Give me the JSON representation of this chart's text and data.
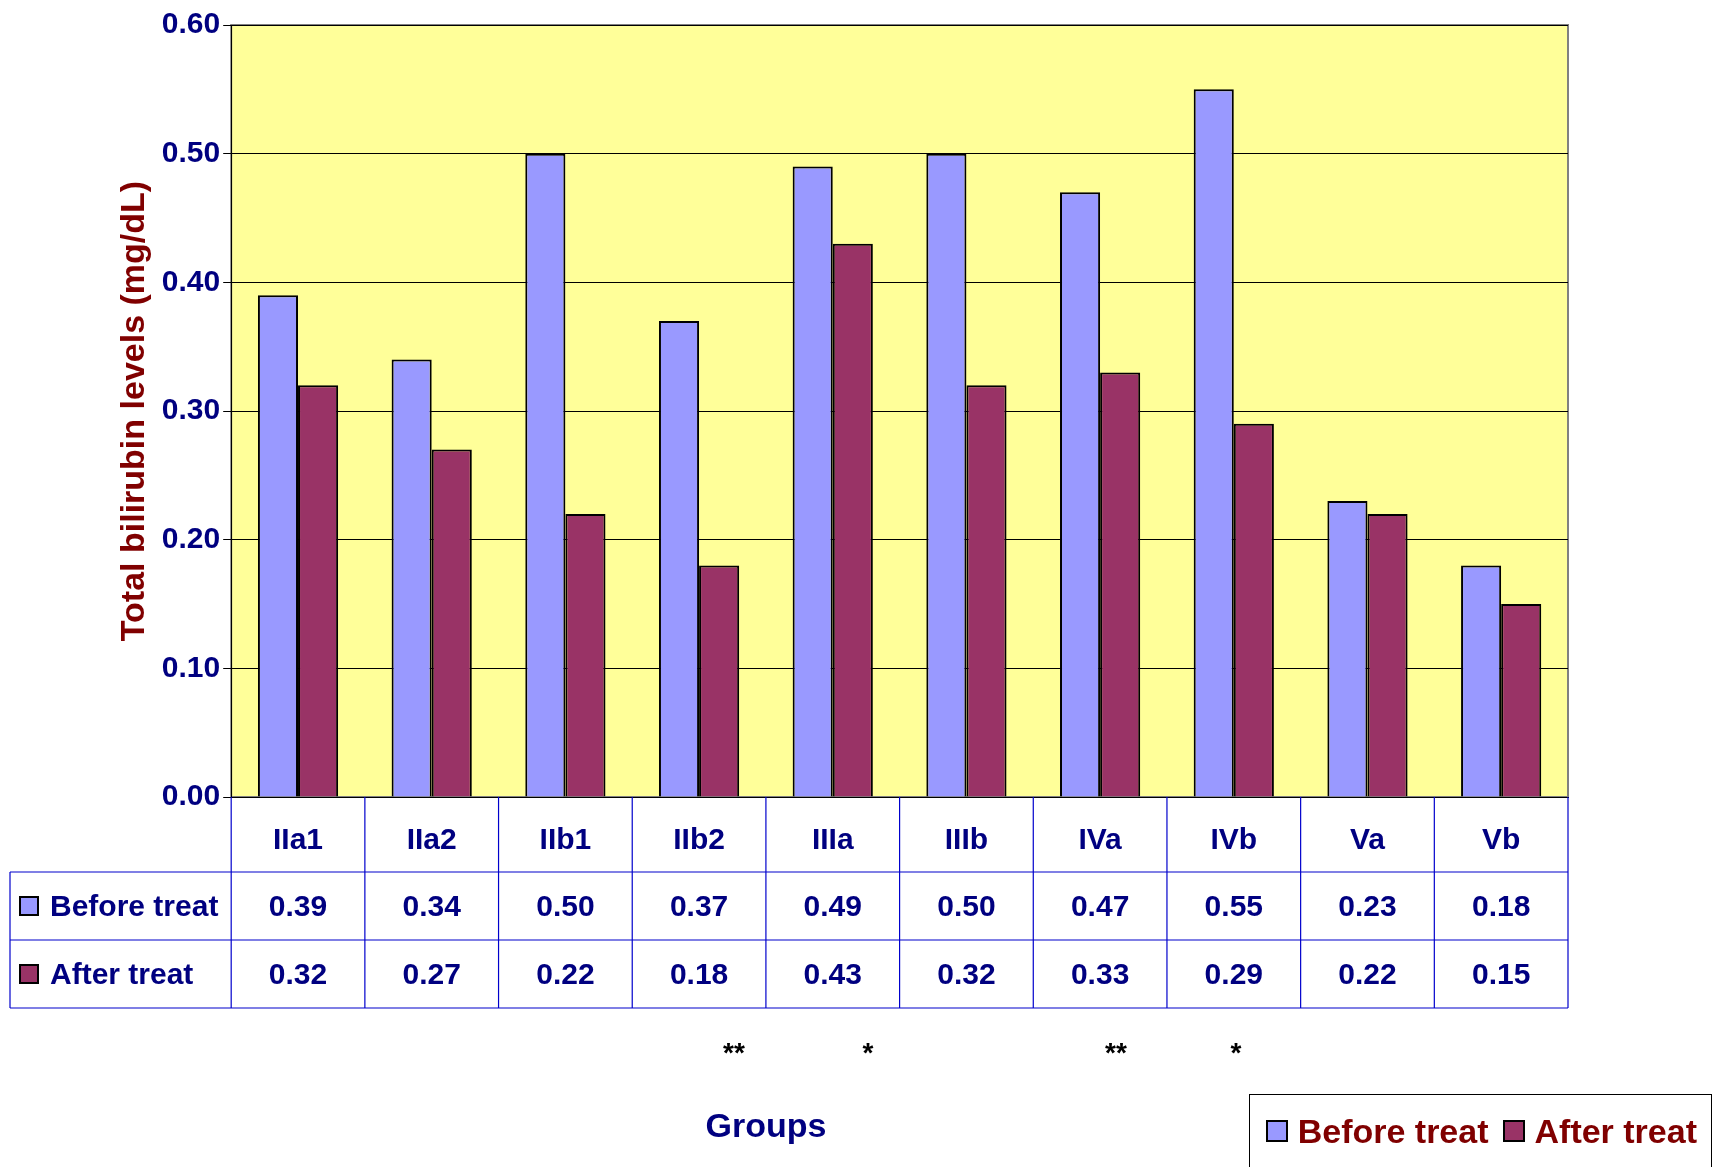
{
  "chart_data": {
    "type": "bar",
    "ylabel": "Total bilirubin levels (mg/dL)",
    "categories": [
      "IIa1",
      "IIa2",
      "IIb1",
      "IIb2",
      "IIIa",
      "IIIb",
      "IVa",
      "IVb",
      "Va",
      "Vb"
    ],
    "series": [
      {
        "name": "Before treat",
        "color": "#9999ff",
        "values": [
          0.39,
          0.34,
          0.5,
          0.37,
          0.49,
          0.5,
          0.47,
          0.55,
          0.23,
          0.18
        ],
        "value_labels": [
          "0.39",
          "0.34",
          "0.50",
          "0.37",
          "0.49",
          "0.50",
          "0.47",
          "0.55",
          "0.23",
          "0.18"
        ]
      },
      {
        "name": "After treat",
        "color": "#993366",
        "values": [
          0.32,
          0.27,
          0.22,
          0.18,
          0.43,
          0.32,
          0.33,
          0.29,
          0.22,
          0.15
        ],
        "value_labels": [
          "0.32",
          "0.27",
          "0.22",
          "0.18",
          "0.43",
          "0.32",
          "0.33",
          "0.29",
          "0.22",
          "0.15"
        ]
      }
    ],
    "ylim": [
      0,
      0.6
    ],
    "yticks": [
      {
        "value": 0,
        "label": "0.00"
      },
      {
        "value": 0.1,
        "label": "0.10"
      },
      {
        "value": 0.2,
        "label": "0.20"
      },
      {
        "value": 0.3,
        "label": "0.30"
      },
      {
        "value": 0.4,
        "label": "0.40"
      },
      {
        "value": 0.5,
        "label": "0.50"
      },
      {
        "value": 0.6,
        "label": "0.60"
      }
    ],
    "grid": "y",
    "legend": "bottom left",
    "annotations": [
      "**",
      "*",
      "**",
      "*",
      "Groups"
    ]
  }
}
